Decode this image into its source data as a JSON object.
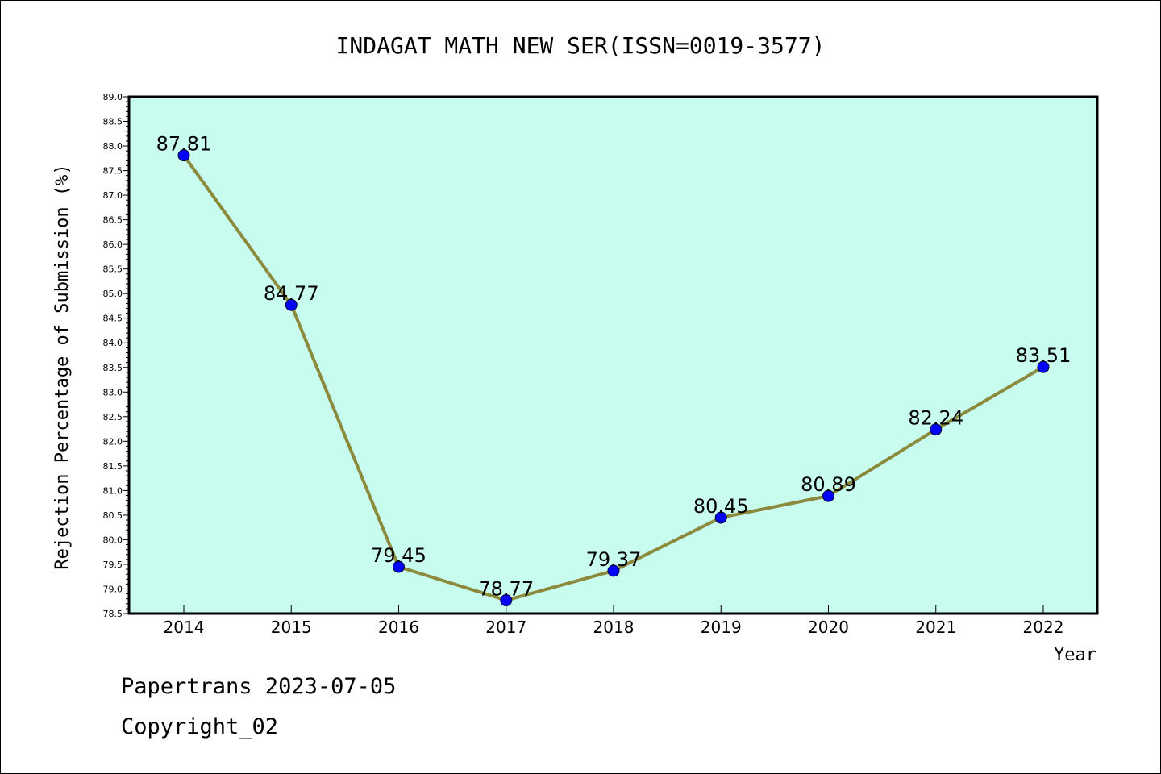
{
  "chart_data": {
    "type": "line",
    "title": "INDAGAT MATH NEW SER(ISSN=0019-3577)",
    "xlabel": "Year",
    "ylabel": "Rejection Percentage of Submission (%)",
    "categories": [
      "2014",
      "2015",
      "2016",
      "2017",
      "2018",
      "2019",
      "2020",
      "2021",
      "2022"
    ],
    "values": [
      87.81,
      84.77,
      79.45,
      78.77,
      79.37,
      80.45,
      80.89,
      82.24,
      83.51
    ],
    "data_labels": [
      "87.81",
      "84.77",
      "79.45",
      "78.77",
      "79.37",
      "80.45",
      "80.89",
      "82.24",
      "83.51"
    ],
    "ylim": [
      78.5,
      89.0
    ],
    "yticks": [
      "78.5",
      "79.0",
      "79.5",
      "80.0",
      "80.5",
      "81.0",
      "81.5",
      "82.0",
      "82.5",
      "83.0",
      "83.5",
      "84.0",
      "84.5",
      "85.0",
      "85.5",
      "86.0",
      "86.5",
      "87.0",
      "87.5",
      "88.0",
      "88.5",
      "89.0"
    ],
    "grid": false,
    "colors": {
      "plot_background": "#c8fcee",
      "line": "#8c8a3c",
      "marker": "#0000ff"
    }
  },
  "footer": {
    "line1": "Papertrans 2023-07-05",
    "line2": "Copyright_02"
  }
}
